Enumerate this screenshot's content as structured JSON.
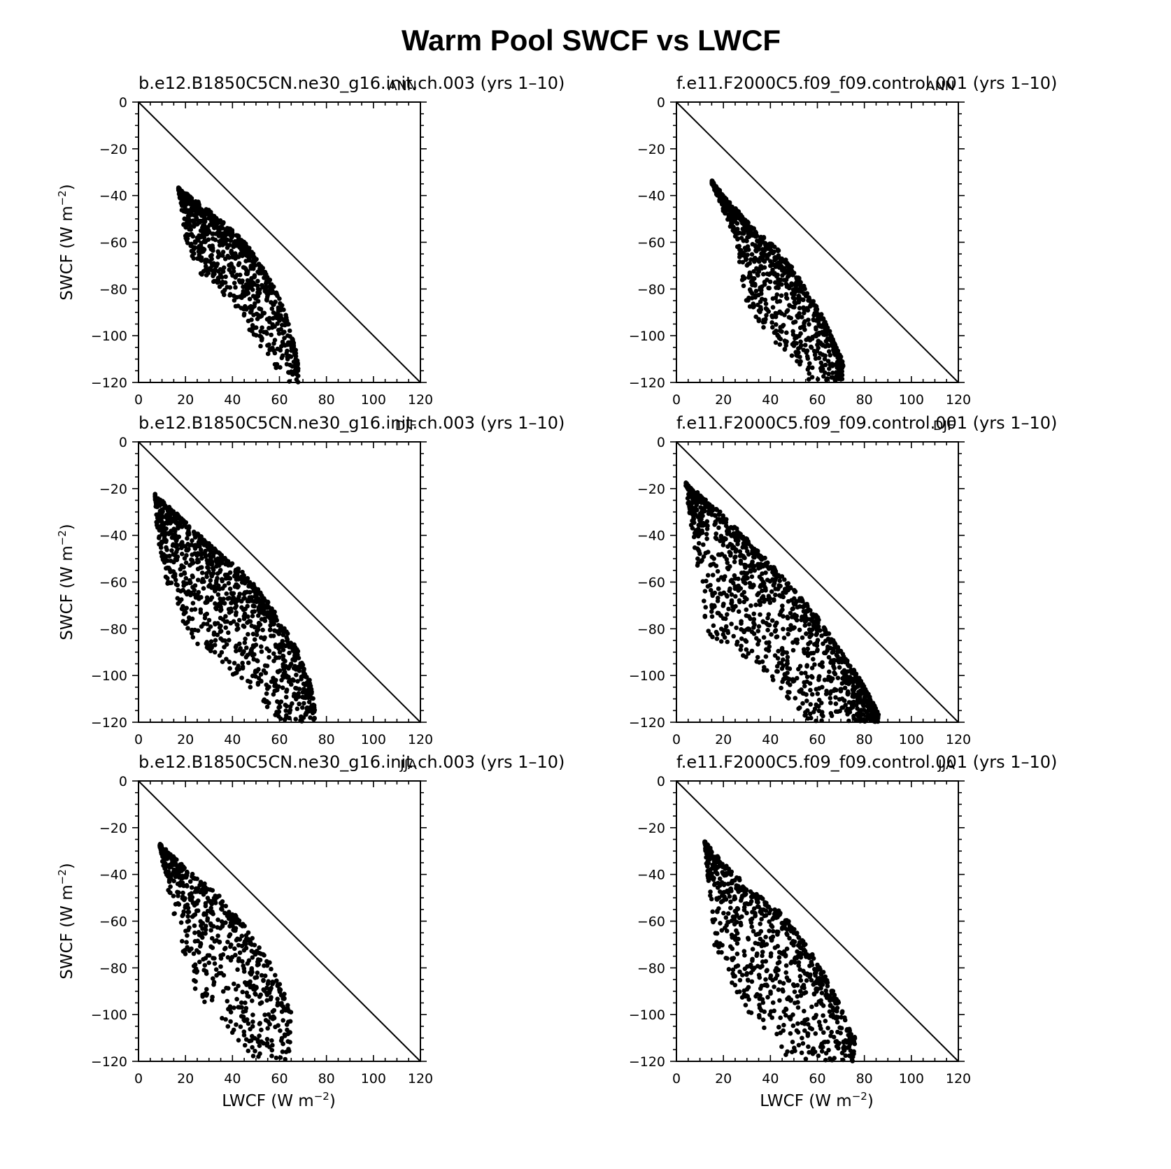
{
  "figure": {
    "title": "Warm Pool SWCF vs LWCF",
    "colors": {
      "points": "#000000",
      "lines": "#000000",
      "background": "#ffffff"
    }
  },
  "chart_data": [
    {
      "type": "scatter",
      "title": "b.e12.B1850C5CN.ne30_g16.init.ch.003 (yrs 1–10)",
      "season": "ANN",
      "xlabel": "",
      "ylabel": "SWCF (W m⁻²)",
      "xlim": [
        0,
        120
      ],
      "ylim": [
        -120,
        0
      ],
      "xticks": [
        "0",
        "20",
        "40",
        "60",
        "80",
        "100",
        "120"
      ],
      "yticks": [
        "0",
        "−20",
        "−40",
        "−60",
        "−80",
        "−100",
        "−120"
      ],
      "reference_line": "1:1 (SWCF = −LWCF)",
      "cloud": {
        "top": [
          [
            17,
            -37
          ],
          [
            25,
            -43
          ],
          [
            35,
            -51
          ],
          [
            45,
            -60
          ],
          [
            52,
            -70
          ],
          [
            58,
            -80
          ],
          [
            63,
            -92
          ],
          [
            67,
            -107
          ],
          [
            68,
            -113
          ]
        ],
        "bottom": [
          [
            17,
            -37
          ],
          [
            20,
            -60
          ],
          [
            26,
            -73
          ],
          [
            36,
            -82
          ],
          [
            45,
            -93
          ],
          [
            52,
            -108
          ],
          [
            60,
            -120
          ]
        ],
        "count": 850
      }
    },
    {
      "type": "scatter",
      "title": "f.e11.F2000C5.f09_f09.control.001 (yrs 1–10)",
      "season": "ANN",
      "xlabel": "",
      "ylabel": "",
      "xlim": [
        0,
        120
      ],
      "ylim": [
        -120,
        0
      ],
      "xticks": [
        "0",
        "20",
        "40",
        "60",
        "80",
        "100",
        "120"
      ],
      "yticks": [
        "0",
        "−20",
        "−40",
        "−60",
        "−80",
        "−100",
        "−120"
      ],
      "reference_line": "1:1 (SWCF = −LWCF)",
      "cloud": {
        "top": [
          [
            15,
            -34
          ],
          [
            22,
            -43
          ],
          [
            32,
            -53
          ],
          [
            42,
            -62
          ],
          [
            52,
            -75
          ],
          [
            60,
            -88
          ],
          [
            66,
            -100
          ],
          [
            71,
            -112
          ]
        ],
        "bottom": [
          [
            15,
            -34
          ],
          [
            20,
            -47
          ],
          [
            25,
            -58
          ],
          [
            27,
            -72
          ],
          [
            30,
            -87
          ],
          [
            40,
            -100
          ],
          [
            50,
            -112
          ],
          [
            58,
            -120
          ],
          [
            66,
            -120
          ]
        ],
        "count": 850
      }
    },
    {
      "type": "scatter",
      "title": "b.e12.B1850C5CN.ne30_g16.init.ch.003 (yrs 1–10)",
      "season": "DJF",
      "xlabel": "",
      "ylabel": "SWCF (W m⁻²)",
      "xlim": [
        0,
        120
      ],
      "ylim": [
        -120,
        0
      ],
      "xticks": [
        "0",
        "20",
        "40",
        "60",
        "80",
        "100",
        "120"
      ],
      "yticks": [
        "0",
        "−20",
        "−40",
        "−60",
        "−80",
        "−100",
        "−120"
      ],
      "reference_line": "1:1 (SWCF = −LWCF)",
      "cloud": {
        "top": [
          [
            7,
            -23
          ],
          [
            15,
            -30
          ],
          [
            30,
            -44
          ],
          [
            45,
            -57
          ],
          [
            55,
            -68
          ],
          [
            62,
            -80
          ],
          [
            68,
            -90
          ],
          [
            73,
            -103
          ],
          [
            75,
            -113
          ]
        ],
        "bottom": [
          [
            7,
            -23
          ],
          [
            8,
            -40
          ],
          [
            12,
            -60
          ],
          [
            18,
            -75
          ],
          [
            25,
            -87
          ],
          [
            40,
            -100
          ],
          [
            50,
            -108
          ],
          [
            58,
            -118
          ],
          [
            66,
            -120
          ],
          [
            74,
            -120
          ]
        ],
        "count": 1100
      }
    },
    {
      "type": "scatter",
      "title": "f.e11.F2000C5.f09_f09.control.001 (yrs 1–10)",
      "season": "DJF",
      "xlabel": "",
      "ylabel": "",
      "xlim": [
        0,
        120
      ],
      "ylim": [
        -120,
        0
      ],
      "xticks": [
        "0",
        "20",
        "40",
        "60",
        "80",
        "100",
        "120"
      ],
      "yticks": [
        "0",
        "−20",
        "−40",
        "−60",
        "−80",
        "−100",
        "−120"
      ],
      "reference_line": "1:1 (SWCF = −LWCF)",
      "cloud": {
        "top": [
          [
            4,
            -18
          ],
          [
            15,
            -27
          ],
          [
            30,
            -42
          ],
          [
            45,
            -58
          ],
          [
            60,
            -75
          ],
          [
            70,
            -90
          ],
          [
            80,
            -105
          ],
          [
            86,
            -117
          ]
        ],
        "bottom": [
          [
            4,
            -18
          ],
          [
            6,
            -35
          ],
          [
            10,
            -60
          ],
          [
            13,
            -82
          ],
          [
            20,
            -87
          ],
          [
            35,
            -96
          ],
          [
            45,
            -108
          ],
          [
            52,
            -118
          ],
          [
            60,
            -120
          ],
          [
            84,
            -120
          ]
        ],
        "count": 1200
      }
    },
    {
      "type": "scatter",
      "title": "b.e12.B1850C5CN.ne30_g16.init.ch.003 (yrs 1–10)",
      "season": "JJA",
      "xlabel": "LWCF (W m⁻²)",
      "ylabel": "SWCF (W m⁻²)",
      "xlim": [
        0,
        120
      ],
      "ylim": [
        -120,
        0
      ],
      "xticks": [
        "0",
        "20",
        "40",
        "60",
        "80",
        "100",
        "120"
      ],
      "yticks": [
        "0",
        "−20",
        "−40",
        "−60",
        "−80",
        "−100",
        "−120"
      ],
      "reference_line": "1:1 (SWCF = −LWCF)",
      "cloud": {
        "top": [
          [
            9,
            -27
          ],
          [
            20,
            -38
          ],
          [
            35,
            -50
          ],
          [
            45,
            -62
          ],
          [
            52,
            -72
          ],
          [
            58,
            -82
          ],
          [
            63,
            -94
          ],
          [
            65,
            -99
          ]
        ],
        "bottom": [
          [
            9,
            -27
          ],
          [
            12,
            -45
          ],
          [
            16,
            -62
          ],
          [
            20,
            -78
          ],
          [
            26,
            -95
          ],
          [
            35,
            -103
          ],
          [
            42,
            -112
          ],
          [
            50,
            -120
          ],
          [
            60,
            -120
          ]
        ],
        "count": 650
      }
    },
    {
      "type": "scatter",
      "title": "f.e11.F2000C5.f09_f09.control.001 (yrs 1–10)",
      "season": "JJA",
      "xlabel": "LWCF (W m⁻²)",
      "ylabel": "",
      "xlim": [
        0,
        120
      ],
      "ylim": [
        -120,
        0
      ],
      "xticks": [
        "0",
        "20",
        "40",
        "60",
        "80",
        "100",
        "120"
      ],
      "yticks": [
        "0",
        "−20",
        "−40",
        "−60",
        "−80",
        "−100",
        "−120"
      ],
      "reference_line": "1:1 (SWCF = −LWCF)",
      "cloud": {
        "top": [
          [
            12,
            -26
          ],
          [
            22,
            -38
          ],
          [
            32,
            -47
          ],
          [
            45,
            -57
          ],
          [
            55,
            -70
          ],
          [
            63,
            -83
          ],
          [
            70,
            -97
          ],
          [
            75,
            -110
          ]
        ],
        "bottom": [
          [
            12,
            -26
          ],
          [
            14,
            -52
          ],
          [
            16,
            -70
          ],
          [
            23,
            -85
          ],
          [
            28,
            -95
          ],
          [
            38,
            -108
          ],
          [
            44,
            -115
          ],
          [
            50,
            -120
          ],
          [
            76,
            -120
          ]
        ],
        "count": 800
      }
    }
  ]
}
